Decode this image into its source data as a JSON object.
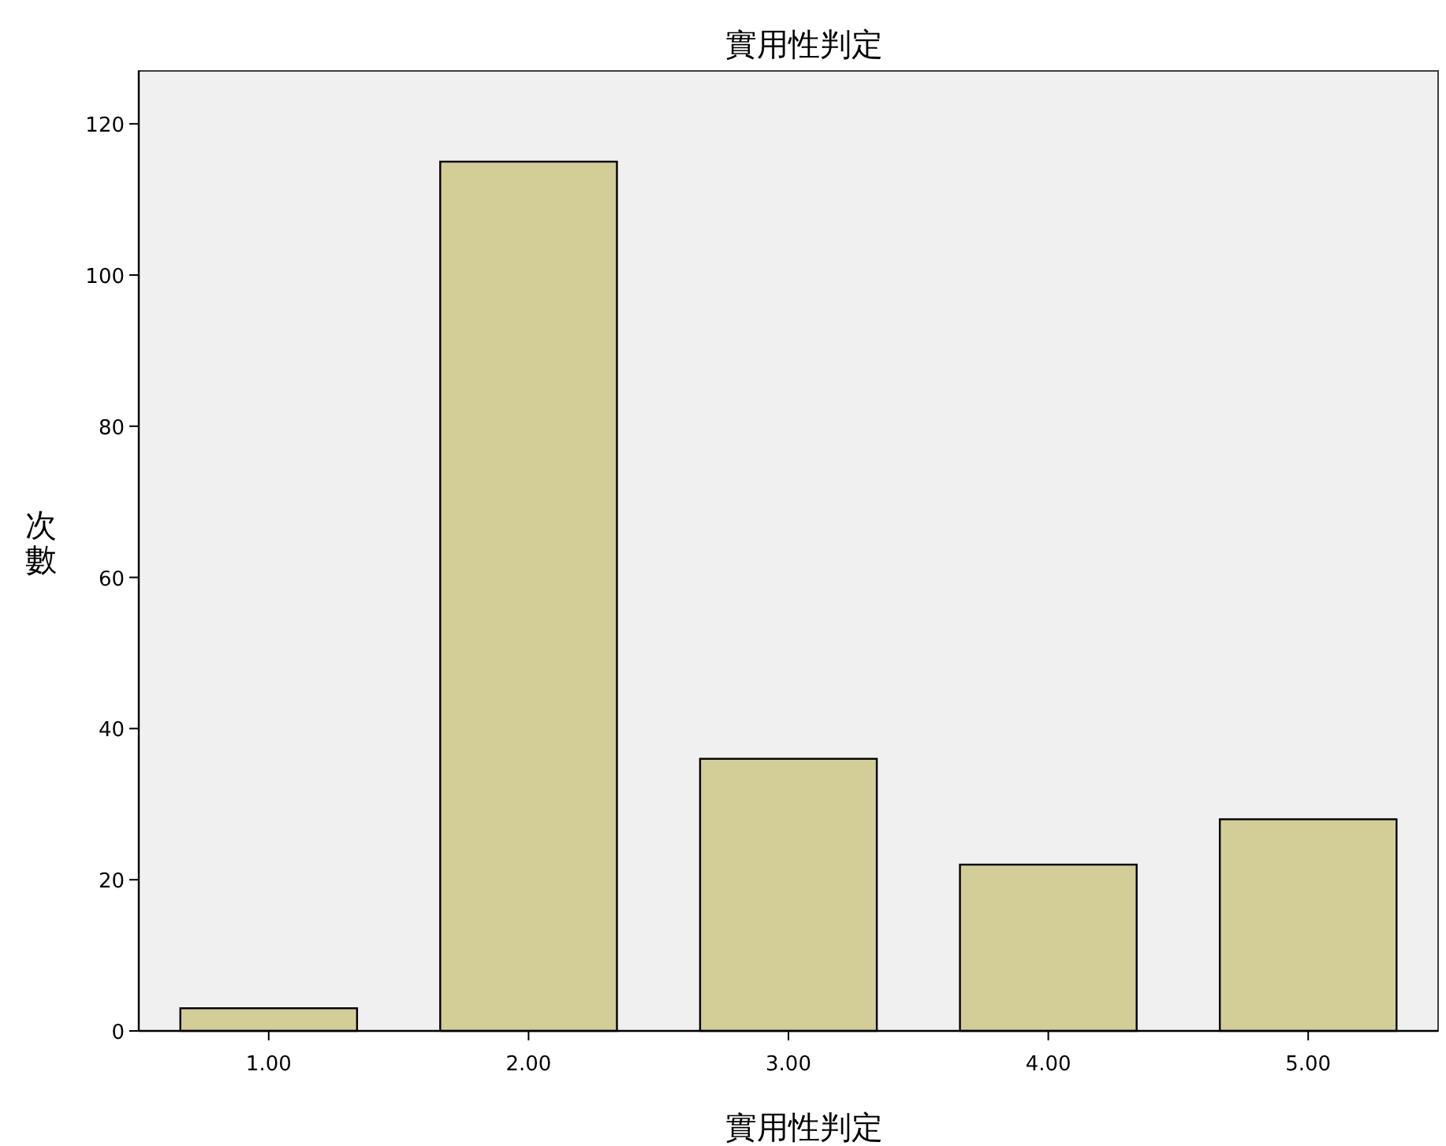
{
  "chart_data": {
    "type": "bar",
    "title": "實用性判定",
    "xlabel": "實用性判定",
    "ylabel": "次數",
    "categories": [
      "1.00",
      "2.00",
      "3.00",
      "4.00",
      "5.00"
    ],
    "values": [
      3,
      115,
      36,
      22,
      28
    ],
    "color": "#d3ce97",
    "ylim": [
      0,
      127
    ],
    "yticks": [
      0,
      20,
      40,
      60,
      80,
      100,
      120
    ],
    "grid": false
  }
}
